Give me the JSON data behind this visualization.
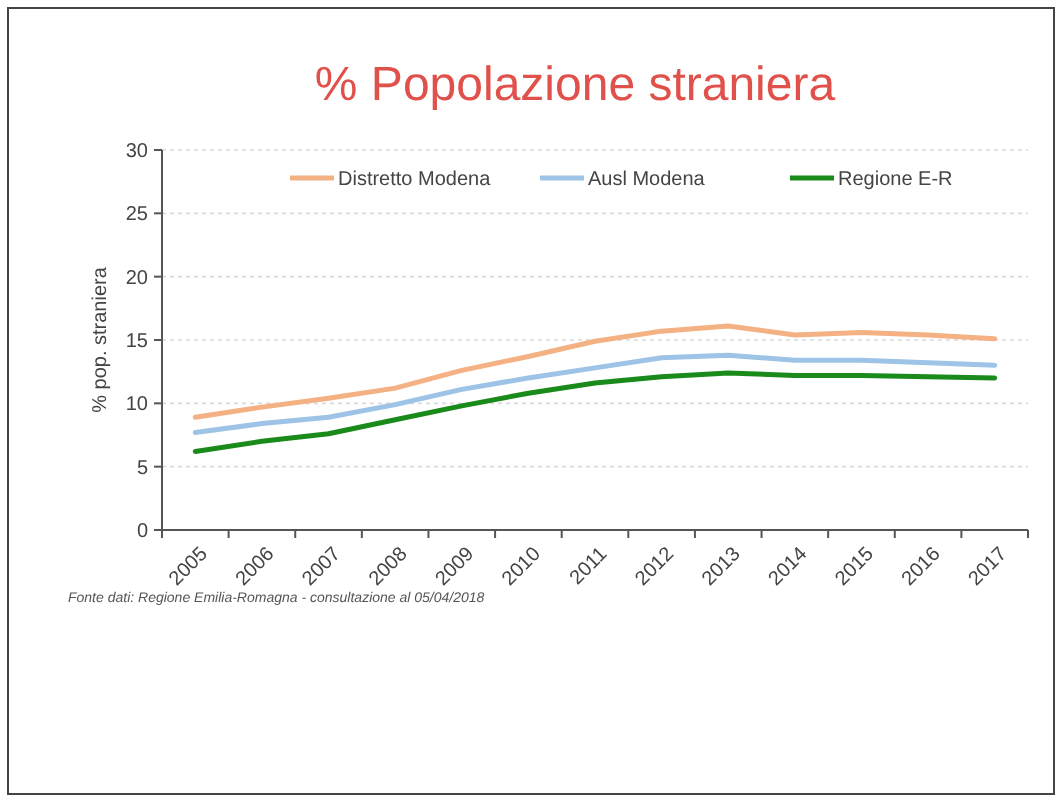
{
  "chart_data": {
    "type": "line",
    "title": "% Popolazione straniera",
    "ylabel": "% pop. straniera",
    "categories": [
      "2005",
      "2006",
      "2007",
      "2008",
      "2009",
      "2010",
      "2011",
      "2012",
      "2013",
      "2014",
      "2015",
      "2016",
      "2017"
    ],
    "series": [
      {
        "name": "Distretto Modena",
        "color": "#f4b183",
        "values": [
          8.9,
          9.7,
          10.4,
          11.2,
          12.6,
          13.7,
          14.9,
          15.7,
          16.1,
          15.4,
          15.6,
          15.4,
          15.1
        ]
      },
      {
        "name": "Ausl Modena",
        "color": "#9dc3e6",
        "values": [
          7.7,
          8.4,
          8.9,
          9.9,
          11.1,
          12.0,
          12.8,
          13.6,
          13.8,
          13.4,
          13.4,
          13.2,
          13.0
        ]
      },
      {
        "name": "Regione E-R",
        "color": "#1a8a1a",
        "values": [
          6.2,
          7.0,
          7.6,
          8.7,
          9.8,
          10.8,
          11.6,
          12.1,
          12.4,
          12.2,
          12.2,
          12.1,
          12.0
        ]
      }
    ],
    "ylim": [
      0,
      30
    ],
    "yticks": [
      0,
      5,
      10,
      15,
      20,
      25,
      30
    ],
    "grid": "y",
    "legend": "top",
    "marker": "none",
    "line_style": "solid",
    "annotations": [
      "Fonte dati: Regione Emilia-Romagna - consultazione al 05/04/2018"
    ]
  }
}
